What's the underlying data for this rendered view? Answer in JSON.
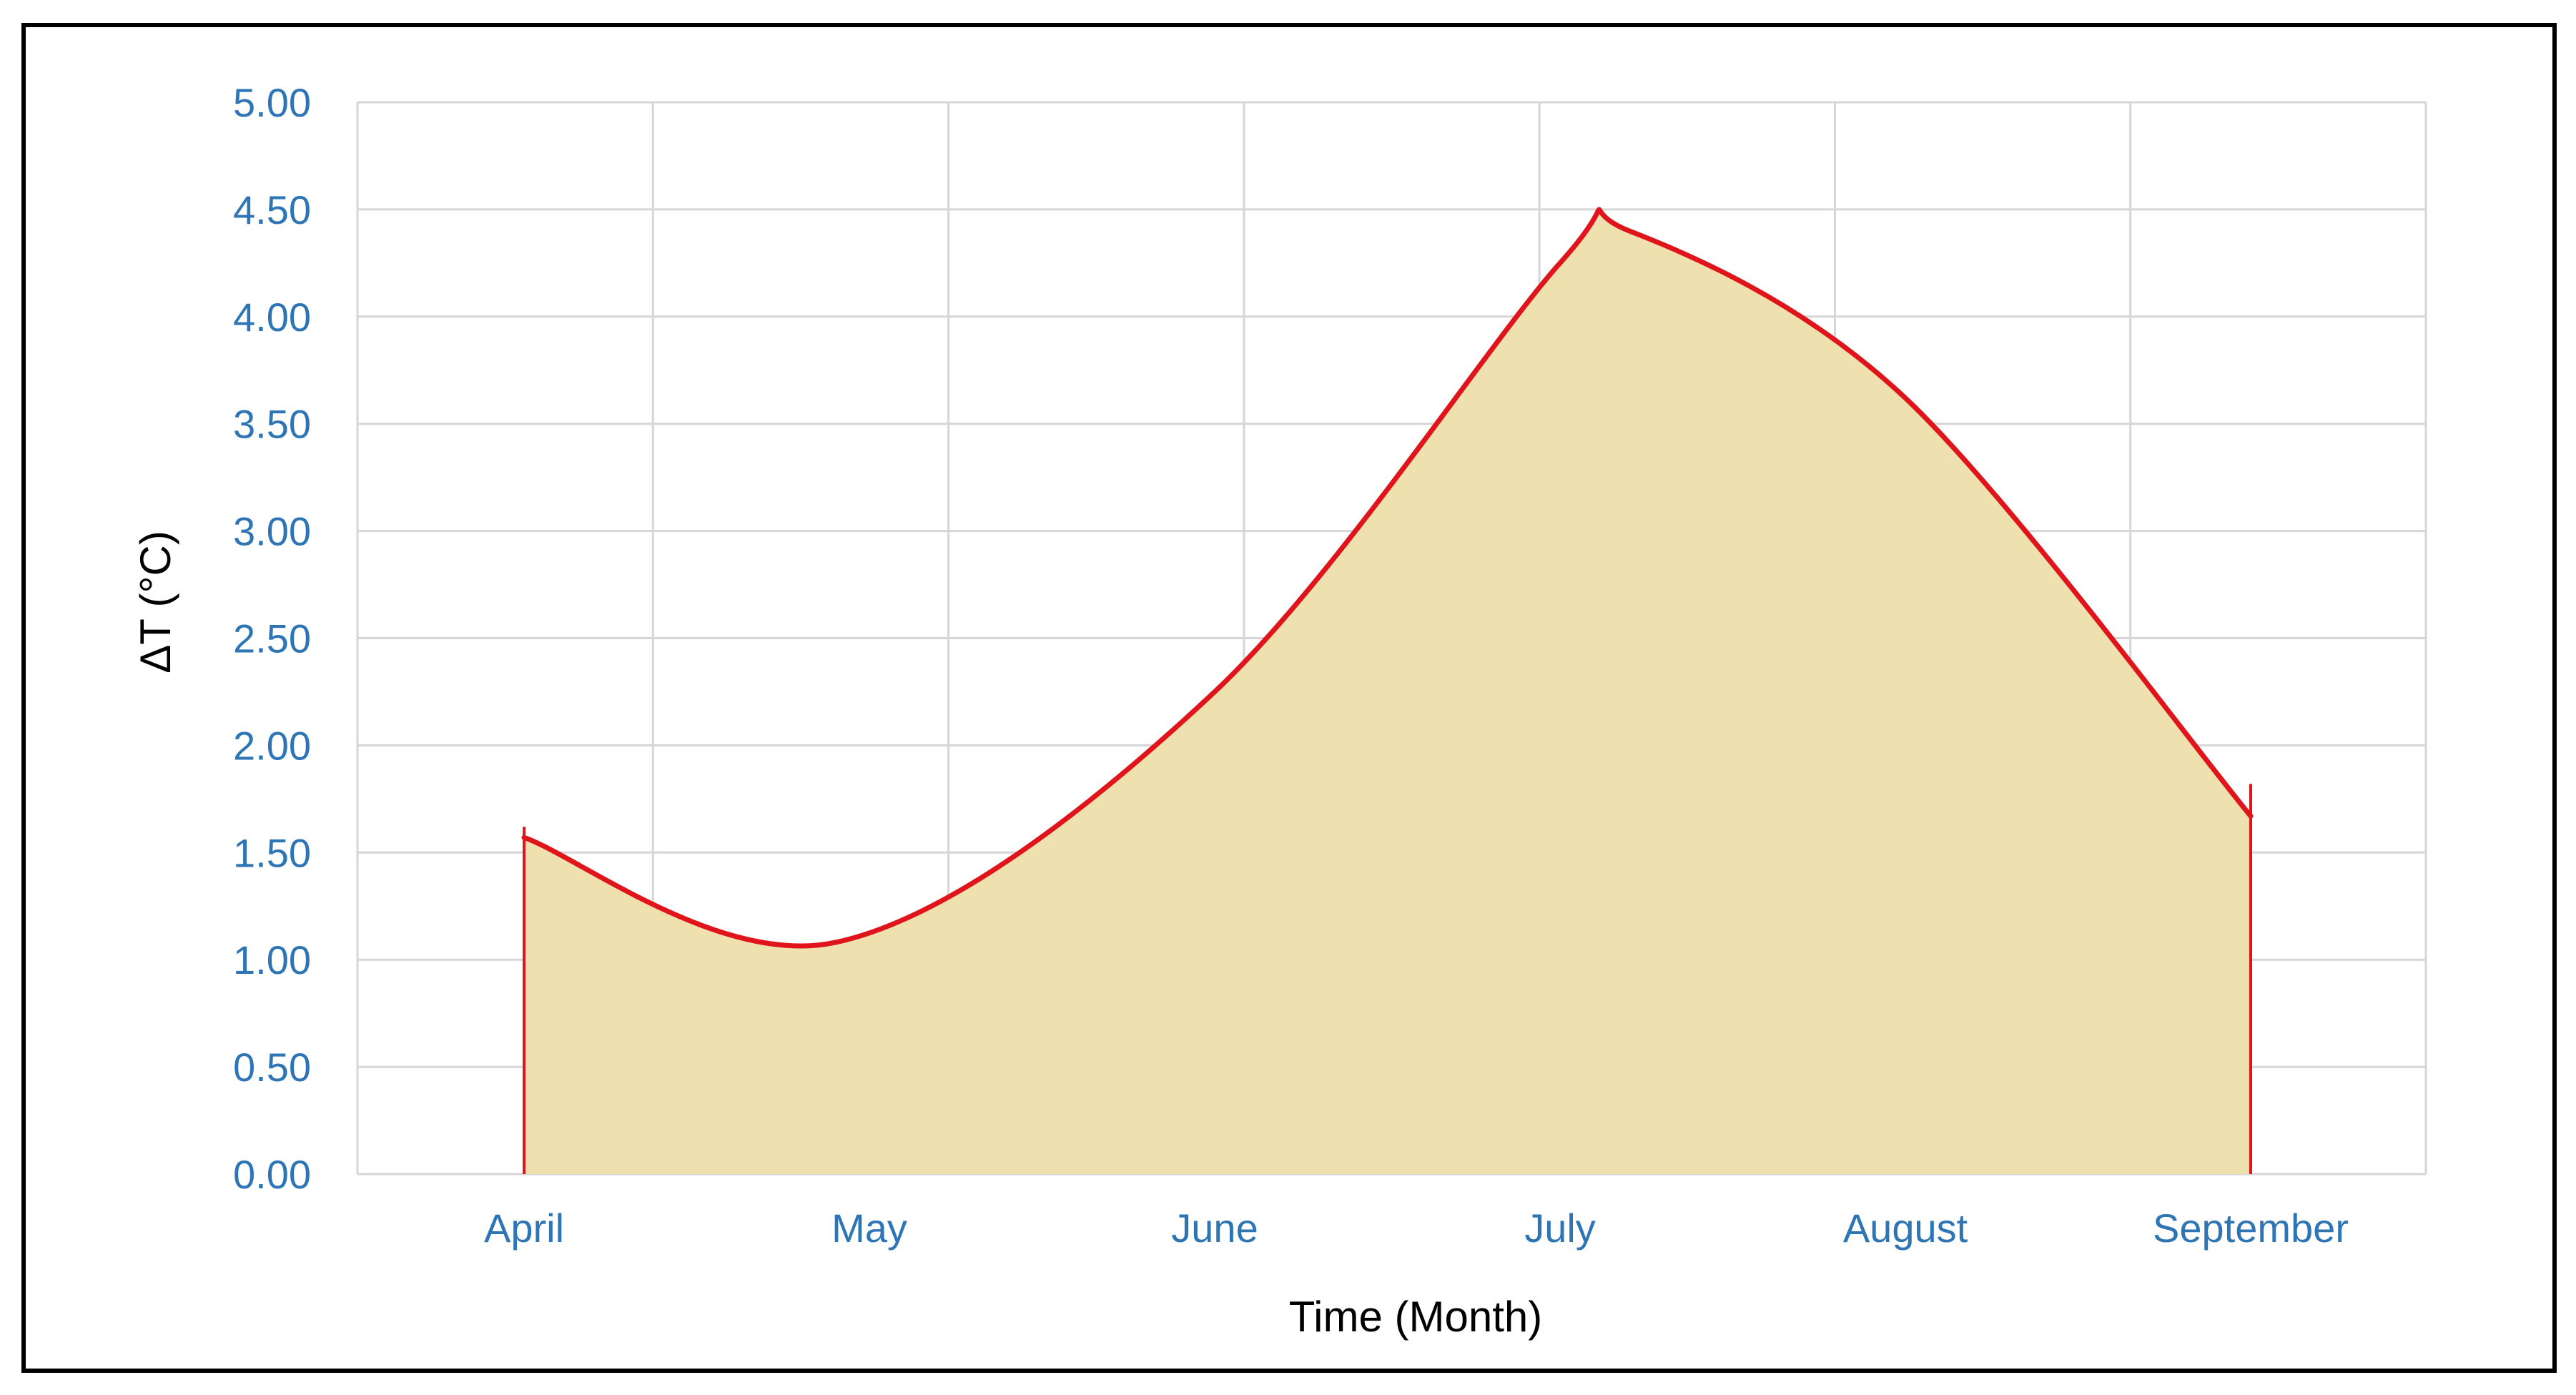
{
  "chart_data": {
    "type": "area",
    "categories": [
      "April",
      "May",
      "June",
      "July",
      "August",
      "September"
    ],
    "x": [
      0,
      0.9,
      2.0,
      3.0,
      3.2,
      4.0,
      5.0
    ],
    "y": [
      1.57,
      1.08,
      2.25,
      4.25,
      4.4,
      3.62,
      1.67
    ],
    "title": "",
    "xlabel": "Time (Month)",
    "ylabel": "ΔT (°C)",
    "ylim": [
      0,
      5
    ],
    "yticks": [
      "0.00",
      "0.50",
      "1.00",
      "1.50",
      "2.00",
      "2.50",
      "3.00",
      "3.50",
      "4.00",
      "4.50",
      "5.00"
    ],
    "grid": true,
    "legend": "none",
    "colors": {
      "line": "#e0141b",
      "fill": "#efe0b0",
      "tick_text": "#2e75b6",
      "grid": "#d6d6d6"
    }
  }
}
